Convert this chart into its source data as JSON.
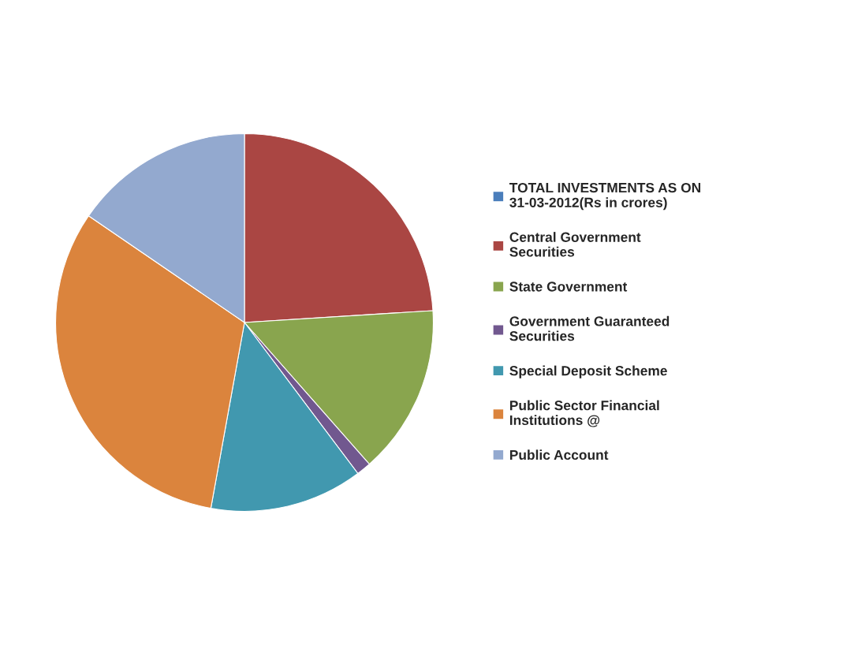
{
  "chart_data": {
    "type": "pie",
    "categories": [
      "TOTAL INVESTMENTS AS ON 31-03-2012(Rs in crores)",
      "Central Government Securities",
      "State Government",
      "Government Guaranteed Securities",
      "Special Deposit Scheme",
      "Public Sector Financial Institutions @",
      "Public Account"
    ],
    "values": [
      0,
      24.0,
      14.5,
      1.25,
      13.1,
      31.7,
      15.45
    ],
    "colors": [
      "#4a7ebb",
      "#aa4643",
      "#89a54e",
      "#71588f",
      "#4198af",
      "#db843d",
      "#93a9cf"
    ],
    "legend": "right"
  }
}
